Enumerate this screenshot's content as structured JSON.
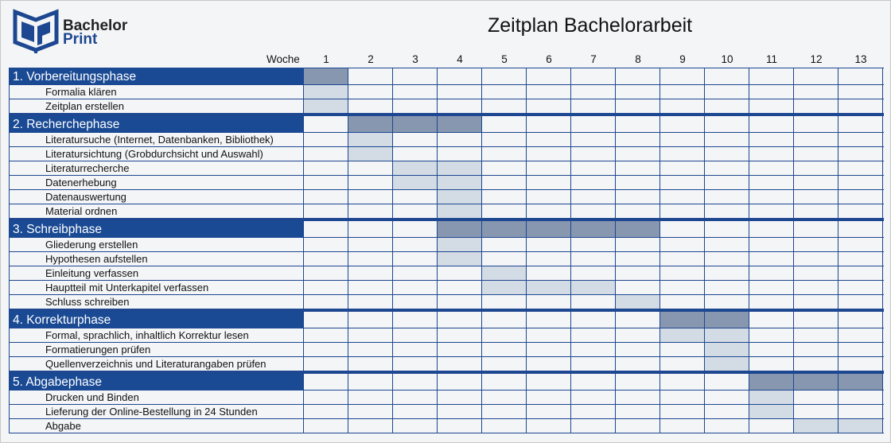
{
  "brand": {
    "line1": "Bachelor",
    "line2": "Print"
  },
  "title": "Zeitplan Bachelorarbeit",
  "week_label": "Woche",
  "weeks": [
    "1",
    "2",
    "3",
    "4",
    "5",
    "6",
    "7",
    "8",
    "9",
    "10",
    "11",
    "12",
    "13"
  ],
  "colors": {
    "phase_bg": "#1a4a94",
    "phase_fill": "#8797b0",
    "task_fill": "#d3dbe5",
    "grid": "#1d4790"
  },
  "phases": [
    {
      "label": "1. Vorbereitungsphase",
      "weeks": [
        1
      ],
      "tasks": [
        {
          "label": "Formalia klären",
          "weeks": [
            1
          ]
        },
        {
          "label": "Zeitplan erstellen",
          "weeks": [
            1
          ]
        }
      ]
    },
    {
      "label": "2. Recherchephase",
      "weeks": [
        2,
        3,
        4
      ],
      "tasks": [
        {
          "label": "Literatursuche (Internet, Datenbanken, Bibliothek)",
          "weeks": [
            2
          ]
        },
        {
          "label": "Literatursichtung (Grobdurchsicht und Auswahl)",
          "weeks": [
            2
          ]
        },
        {
          "label": "Literaturrecherche",
          "weeks": [
            3,
            4
          ]
        },
        {
          "label": "Datenerhebung",
          "weeks": [
            3,
            4
          ]
        },
        {
          "label": "Datenauswertung",
          "weeks": [
            4
          ]
        },
        {
          "label": "Material ordnen",
          "weeks": [
            4
          ]
        }
      ]
    },
    {
      "label": "3. Schreibphase",
      "weeks": [
        4,
        5,
        6,
        7,
        8
      ],
      "tasks": [
        {
          "label": "Gliederung erstellen",
          "weeks": [
            4
          ]
        },
        {
          "label": "Hypothesen aufstellen",
          "weeks": [
            4
          ]
        },
        {
          "label": "Einleitung verfassen",
          "weeks": [
            5
          ]
        },
        {
          "label": "Hauptteil mit Unterkapitel verfassen",
          "weeks": [
            5,
            6,
            7
          ]
        },
        {
          "label": "Schluss schreiben",
          "weeks": [
            8
          ]
        }
      ]
    },
    {
      "label": "4. Korrekturphase",
      "weeks": [
        9,
        10
      ],
      "tasks": [
        {
          "label": "Formal, sprachlich, inhaltlich Korrektur lesen",
          "weeks": [
            9,
            10
          ]
        },
        {
          "label": "Formatierungen prüfen",
          "weeks": [
            10
          ]
        },
        {
          "label": "Quellenverzeichnis und Literaturangaben prüfen",
          "weeks": [
            10
          ]
        }
      ]
    },
    {
      "label": "5. Abgabephase",
      "weeks": [
        11,
        12,
        13
      ],
      "tasks": [
        {
          "label": "Drucken und Binden",
          "weeks": [
            11
          ]
        },
        {
          "label": "Lieferung der Online-Bestellung in 24 Stunden",
          "weeks": [
            11
          ]
        },
        {
          "label": "Abgabe",
          "weeks": [
            12,
            13
          ]
        }
      ]
    }
  ]
}
